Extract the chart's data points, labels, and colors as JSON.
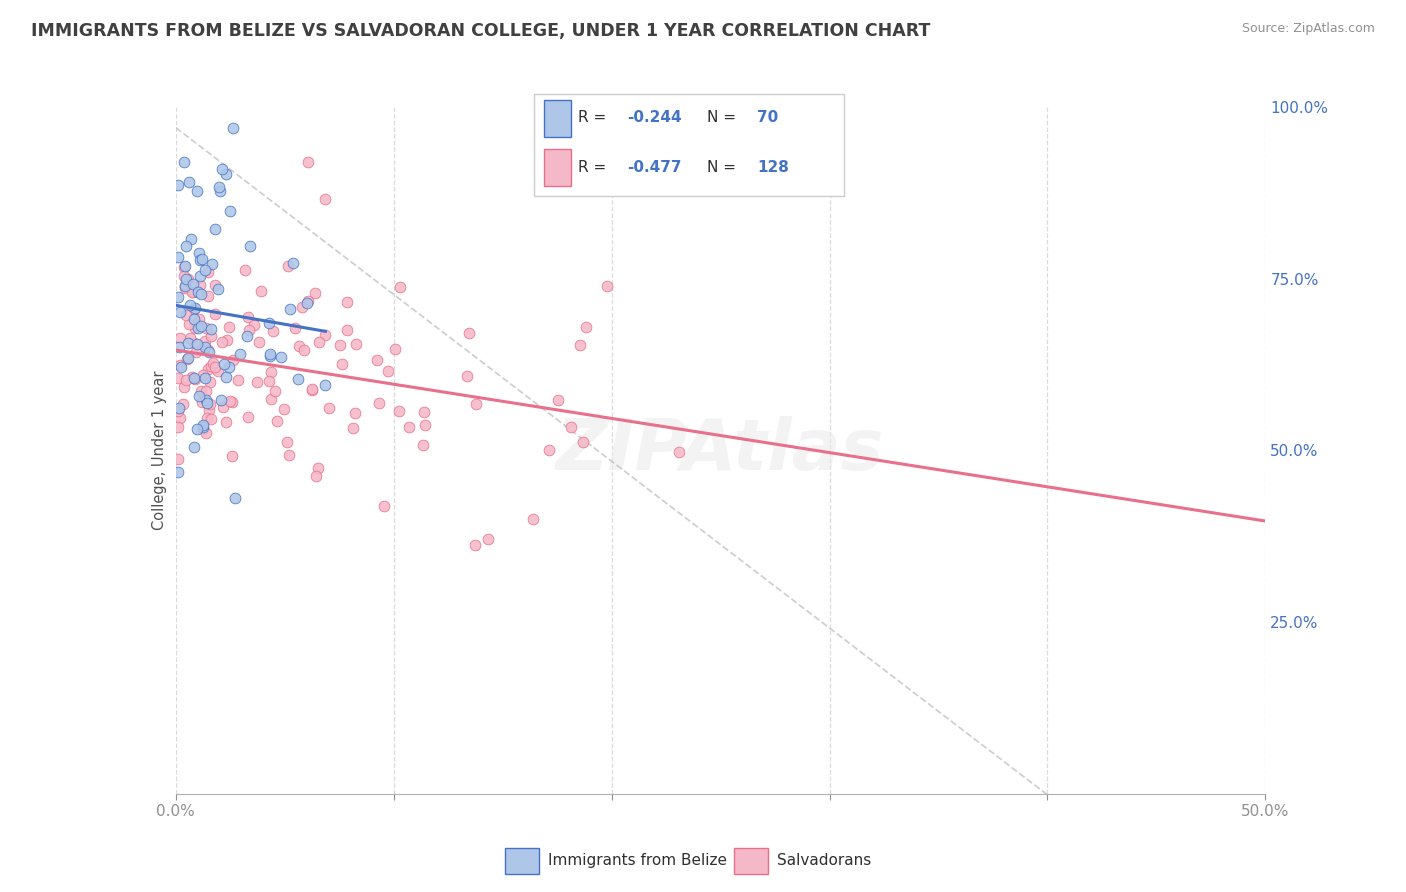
{
  "title": "IMMIGRANTS FROM BELIZE VS SALVADORAN COLLEGE, UNDER 1 YEAR CORRELATION CHART",
  "source": "Source: ZipAtlas.com",
  "yaxis_label": "College, Under 1 year",
  "legend_label1": "Immigrants from Belize",
  "legend_label2": "Salvadorans",
  "R1": -0.244,
  "N1": 70,
  "R2": -0.477,
  "N2": 128,
  "blue_fill": "#aec6e8",
  "pink_fill": "#f5b8c8",
  "blue_edge": "#4472c4",
  "pink_edge": "#e8708a",
  "blue_line": "#4472c4",
  "pink_line": "#e8708a",
  "text_blue": "#4472c4",
  "title_color": "#404040",
  "grid_color": "#d8d8d8",
  "diag_color": "#c0c0c0",
  "xmin": 0.0,
  "xmax": 0.5,
  "ymin": 0.0,
  "ymax": 1.0
}
